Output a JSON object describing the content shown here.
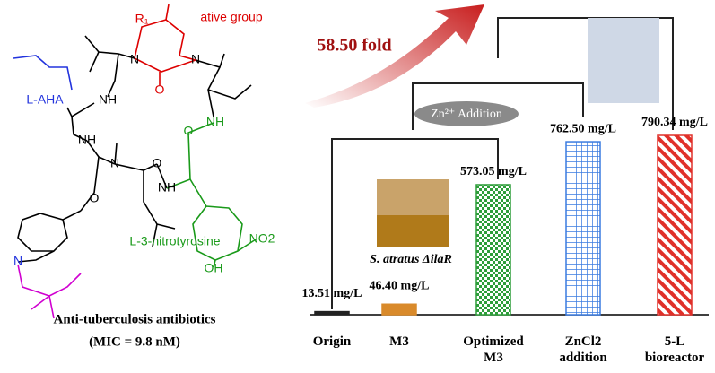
{
  "structure": {
    "labels": [
      "R₁",
      "ative group",
      "N",
      "N",
      "O",
      "NH",
      "L-AHA",
      "NH",
      "O",
      "NH",
      "N",
      "O",
      "NH",
      "O",
      "N",
      "L-3-nitrotyrosine",
      "NO2",
      "OH"
    ],
    "caption": [
      "Anti-tuberculosis antibiotics",
      "(MIC = 9.8 nM)"
    ]
  },
  "annotations": {
    "fold": "58.50 fold",
    "zinc": "Zn²⁺ Addition",
    "strain": "S. atratus ΔilaR"
  },
  "chart_data": {
    "type": "bar",
    "categories": [
      "Origin",
      "M3",
      "Optimized M3",
      "ZnCl2 addition",
      "5-L bioreactor"
    ],
    "values": [
      13.51,
      46.4,
      573.05,
      762.5,
      790.34
    ],
    "value_labels": [
      "13.51 mg/L",
      "46.40 mg/L",
      "573.05 mg/L",
      "762.50 mg/L",
      "790.34 mg/L"
    ],
    "colors": [
      "#222222",
      "#d98a2b",
      "#2e9e3a",
      "#3a7be0",
      "#e0302a"
    ]
  }
}
